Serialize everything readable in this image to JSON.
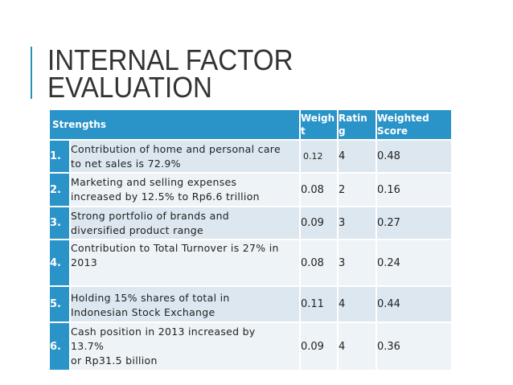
{
  "slide": {
    "title_line1": "INTERNAL FACTOR",
    "title_line2": "EVALUATION"
  },
  "table": {
    "header": {
      "strengths": "Strengths",
      "weight_a": "Weigh",
      "weight_b": "t",
      "rating_a": "Ratin",
      "rating_b": "g",
      "score_a": "Weighted",
      "score_b": "Score"
    },
    "rows": [
      {
        "num": "1.",
        "line1": "Contribution of home and personal care",
        "line2": "to net sales is 72.9%",
        "line3": "",
        "weight": "0.12",
        "rating": "4",
        "score": "0.48"
      },
      {
        "num": "2.",
        "line1": "Marketing and selling expenses",
        "line2": "increased by 12.5% to Rp6.6 trillion",
        "line3": "",
        "weight": "0.08",
        "rating": "2",
        "score": "0.16"
      },
      {
        "num": "3.",
        "line1": "Strong portfolio of brands and",
        "line2": "diversified product range",
        "line3": "",
        "weight": "0.09",
        "rating": "3",
        "score": "0.27"
      },
      {
        "num": "4.",
        "line1": "Contribution to Total Turnover is 27% in",
        "line2": "2013",
        "line3": "",
        "weight": "0.08",
        "rating": "3",
        "score": "0.24"
      },
      {
        "num": "5.",
        "line1": "Holding 15% shares of total in",
        "line2": "Indonesian Stock Exchange",
        "line3": "",
        "weight": "0.11",
        "rating": "4",
        "score": "0.44"
      },
      {
        "num": "6.",
        "line1": "Cash position in 2013 increased by",
        "line2": "13.7%",
        "line3": "or Rp31.5 billion",
        "weight": "0.09",
        "rating": "4",
        "score": "0.36"
      }
    ]
  }
}
